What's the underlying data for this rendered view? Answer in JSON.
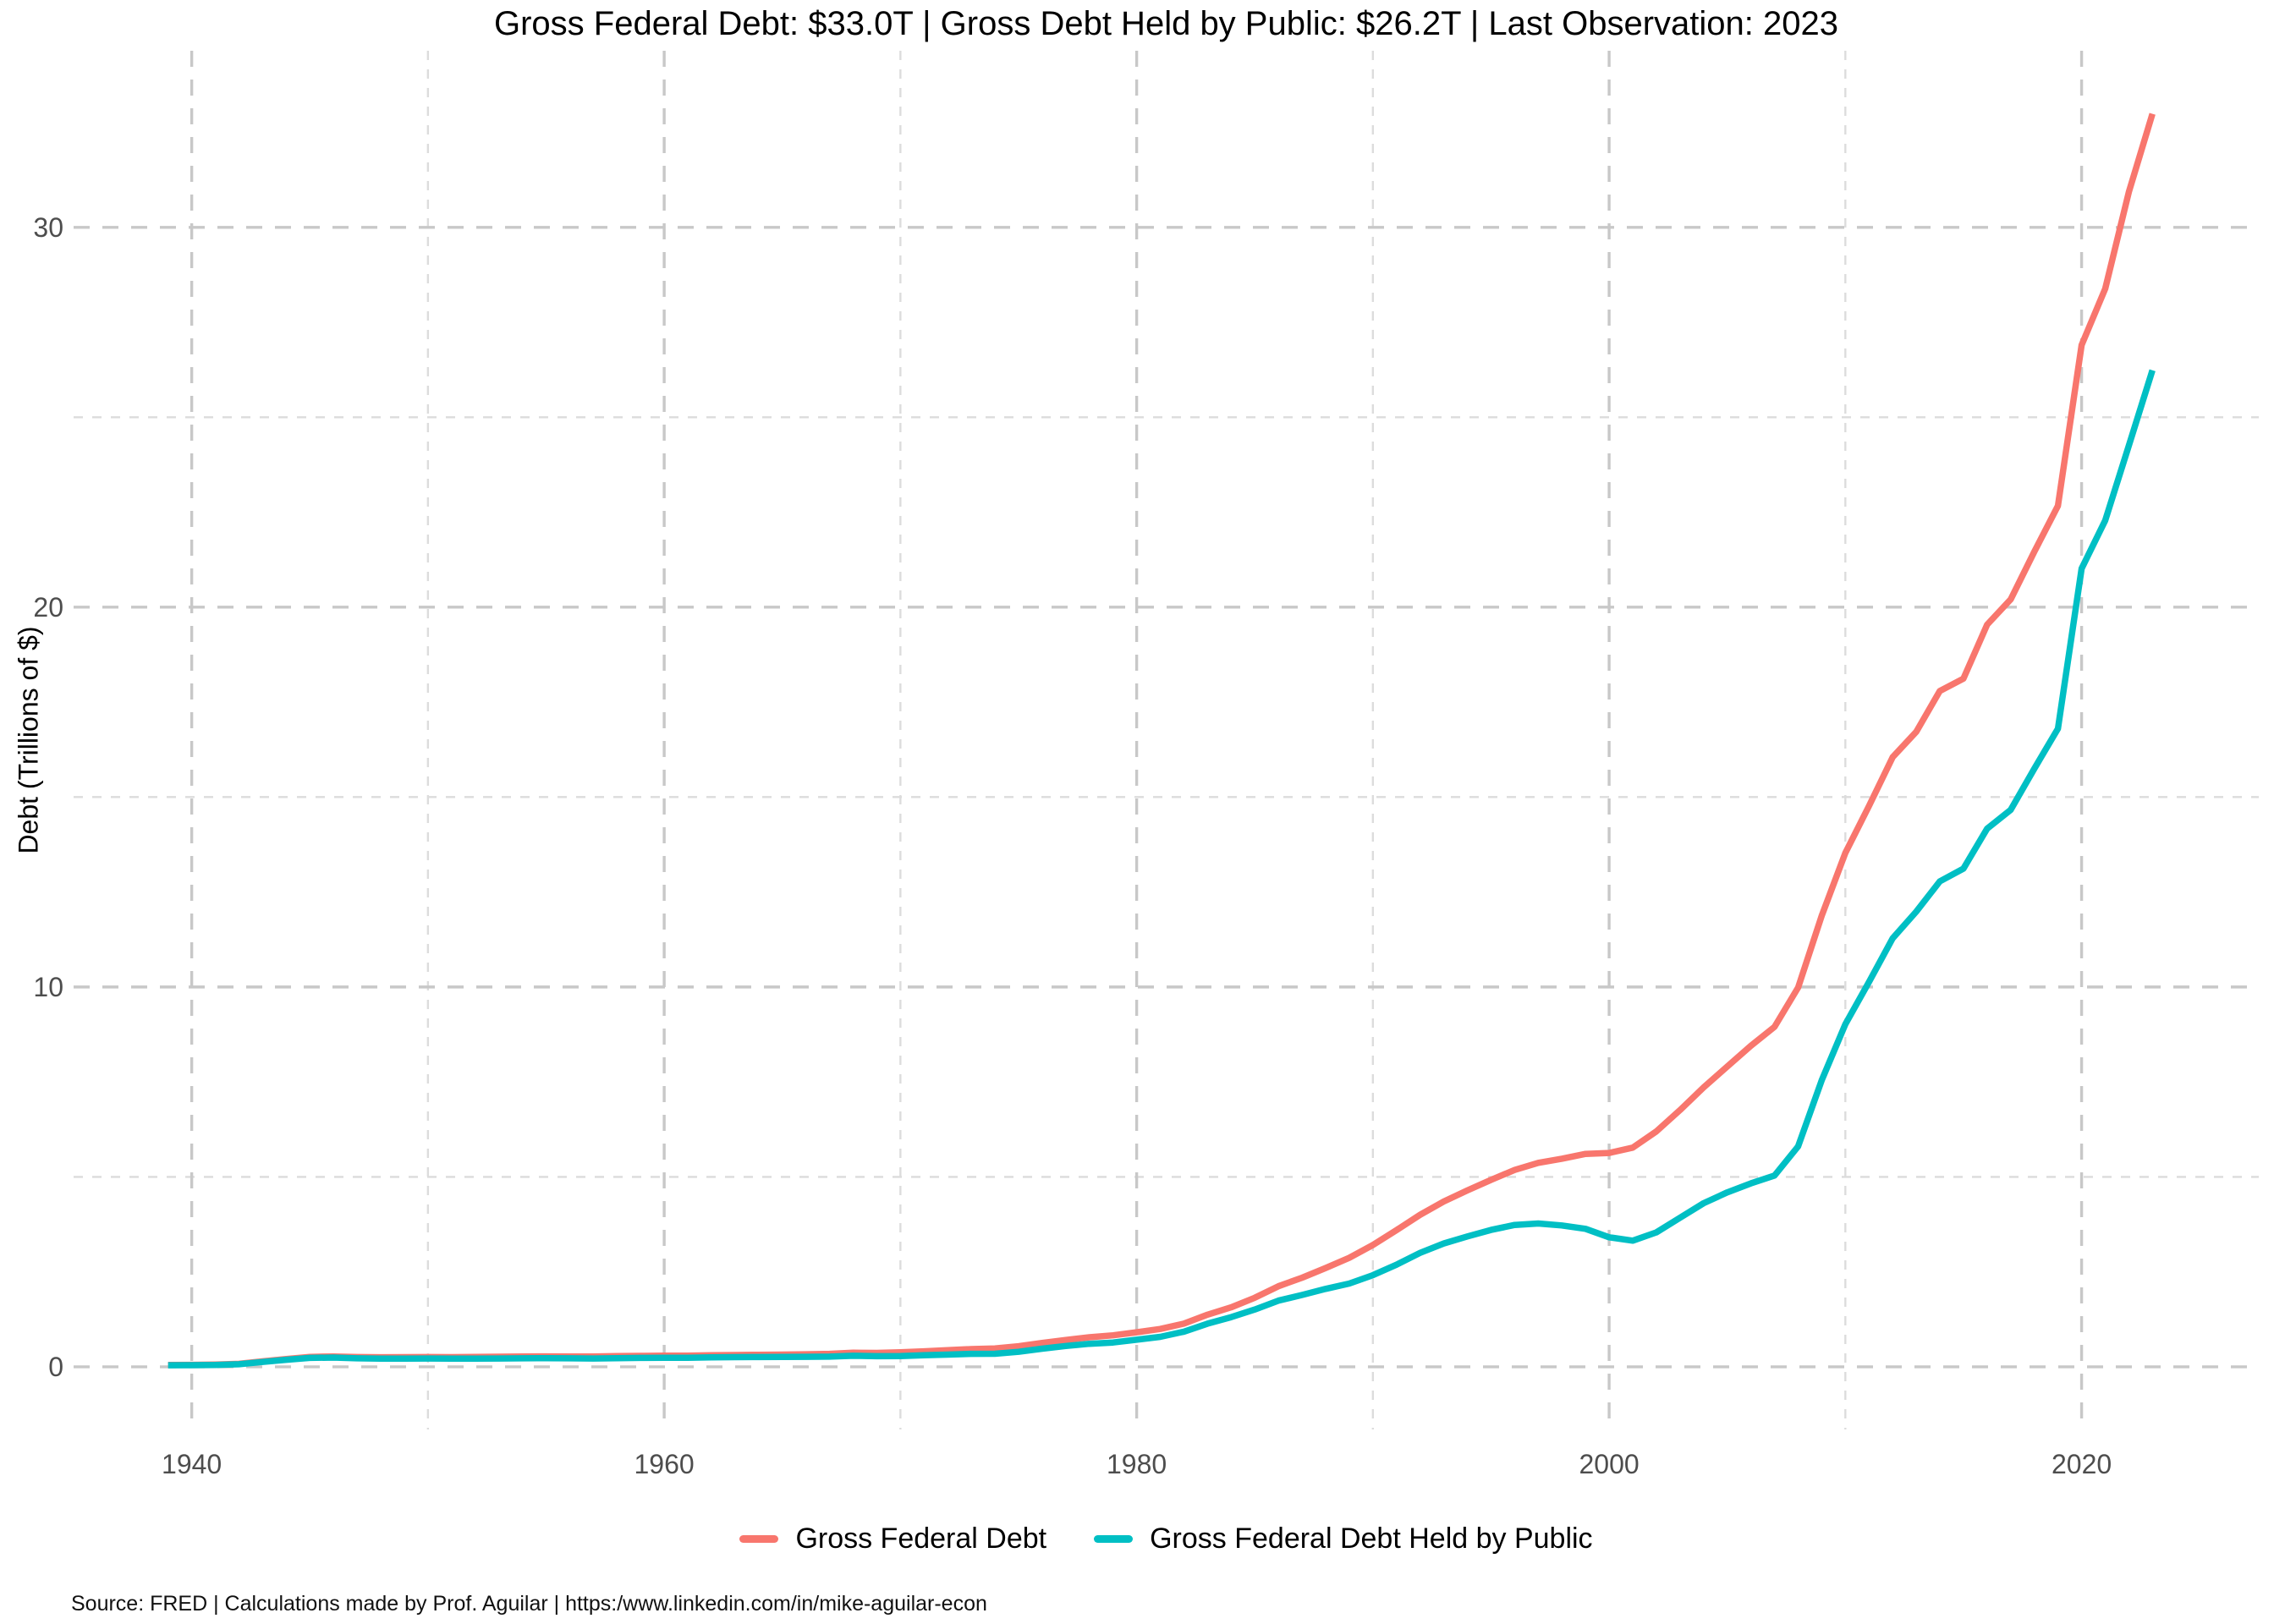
{
  "page": {
    "title": "Gross Federal Debt: $33.0T | Gross Debt Held by Public: $26.2T | Last Observation: 2023",
    "source": "Source: FRED | Calculations made by Prof. Aguilar | https:/www.linkedin.com/in/mike-aguilar-econ"
  },
  "colors": {
    "gross_federal_debt": "#F8766D",
    "debt_held_by_public": "#00BFC4",
    "grid_major": "#c8c8c8",
    "grid_minor": "#dcdcdc",
    "tick_text": "#4d4d4d"
  },
  "chart_data": {
    "type": "line",
    "title": "Gross Federal Debt: $33.0T | Gross Debt Held by Public: $26.2T | Last Observation: 2023",
    "xlabel": "",
    "ylabel": "Debt (Trillions of $)",
    "grid": "dashed",
    "legend_position": "bottom",
    "xlim": [
      1935.0,
      2027.5
    ],
    "ylim": [
      -1.65,
      34.65
    ],
    "x_ticks": [
      1940,
      1960,
      1980,
      2000,
      2020
    ],
    "x_minor": [
      1950,
      1970,
      1990,
      2010
    ],
    "y_ticks": [
      0,
      10,
      20,
      30
    ],
    "y_minor": [
      5,
      15,
      25
    ],
    "x": [
      1939,
      1940,
      1941,
      1942,
      1943,
      1944,
      1945,
      1946,
      1947,
      1948,
      1949,
      1950,
      1951,
      1952,
      1953,
      1954,
      1955,
      1956,
      1957,
      1958,
      1959,
      1960,
      1961,
      1962,
      1963,
      1964,
      1965,
      1966,
      1967,
      1968,
      1969,
      1970,
      1971,
      1972,
      1973,
      1974,
      1975,
      1976,
      1977,
      1978,
      1979,
      1980,
      1981,
      1982,
      1983,
      1984,
      1985,
      1986,
      1987,
      1988,
      1989,
      1990,
      1991,
      1992,
      1993,
      1994,
      1995,
      1996,
      1997,
      1998,
      1999,
      2000,
      2001,
      2002,
      2003,
      2004,
      2005,
      2006,
      2007,
      2008,
      2009,
      2010,
      2011,
      2012,
      2013,
      2014,
      2015,
      2016,
      2017,
      2018,
      2019,
      2020,
      2021,
      2022,
      2023
    ],
    "series": [
      {
        "name": "Gross Federal Debt",
        "color": "#F8766D",
        "values": [
          0.048,
          0.051,
          0.058,
          0.079,
          0.143,
          0.204,
          0.26,
          0.271,
          0.257,
          0.252,
          0.253,
          0.257,
          0.255,
          0.259,
          0.266,
          0.271,
          0.274,
          0.273,
          0.272,
          0.28,
          0.288,
          0.291,
          0.293,
          0.303,
          0.31,
          0.316,
          0.322,
          0.329,
          0.34,
          0.369,
          0.366,
          0.381,
          0.408,
          0.436,
          0.466,
          0.484,
          0.542,
          0.629,
          0.706,
          0.777,
          0.829,
          0.909,
          0.995,
          1.137,
          1.372,
          1.565,
          1.817,
          2.121,
          2.346,
          2.601,
          2.868,
          3.206,
          3.598,
          4.002,
          4.351,
          4.643,
          4.921,
          5.182,
          5.369,
          5.478,
          5.606,
          5.629,
          5.77,
          6.198,
          6.76,
          7.355,
          7.905,
          8.451,
          8.951,
          9.986,
          11.876,
          13.529,
          14.764,
          16.051,
          16.719,
          17.794,
          18.12,
          19.539,
          20.206,
          21.462,
          22.669,
          26.902,
          28.386,
          30.929,
          32.989
        ]
      },
      {
        "name": "Gross Federal Debt Held by Public",
        "color": "#00BFC4",
        "values": [
          0.041,
          0.043,
          0.048,
          0.068,
          0.128,
          0.185,
          0.235,
          0.242,
          0.224,
          0.216,
          0.214,
          0.219,
          0.214,
          0.215,
          0.218,
          0.224,
          0.227,
          0.222,
          0.219,
          0.226,
          0.235,
          0.237,
          0.238,
          0.248,
          0.254,
          0.257,
          0.261,
          0.264,
          0.267,
          0.29,
          0.278,
          0.283,
          0.303,
          0.322,
          0.341,
          0.344,
          0.395,
          0.477,
          0.549,
          0.607,
          0.64,
          0.712,
          0.789,
          0.925,
          1.137,
          1.307,
          1.507,
          1.741,
          1.89,
          2.052,
          2.191,
          2.412,
          2.689,
          3.0,
          3.248,
          3.433,
          3.604,
          3.734,
          3.772,
          3.721,
          3.632,
          3.41,
          3.32,
          3.54,
          3.924,
          4.307,
          4.592,
          4.829,
          5.035,
          5.803,
          7.545,
          9.019,
          10.128,
          11.281,
          11.983,
          12.78,
          13.117,
          14.168,
          14.665,
          15.75,
          16.801,
          21.017,
          22.284,
          24.253,
          26.236
        ]
      }
    ]
  }
}
